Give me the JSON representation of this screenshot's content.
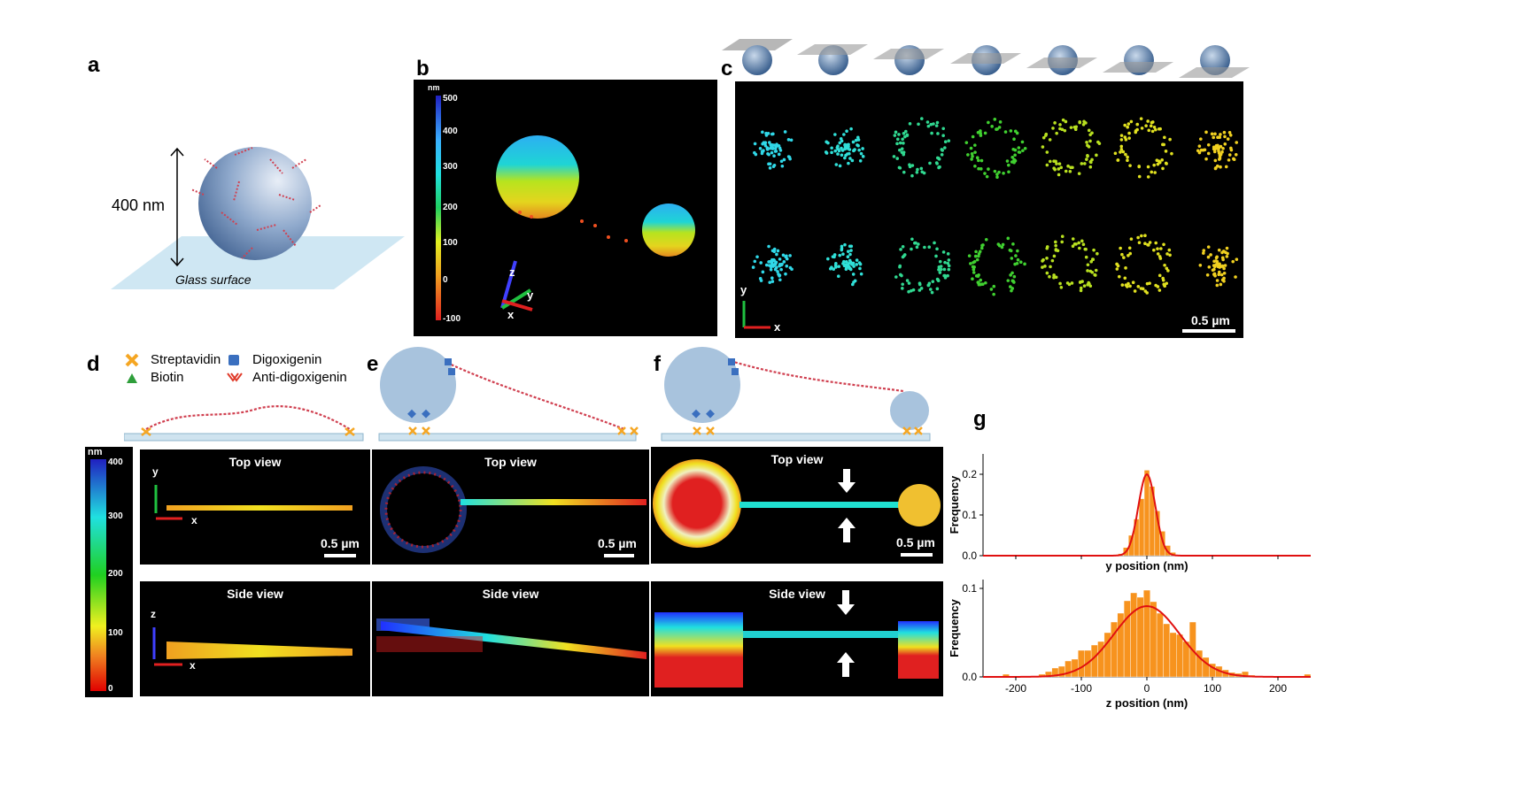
{
  "panels": {
    "a": {
      "label": "a",
      "size_label": "400 nm",
      "surface_label": "Glass surface"
    },
    "b": {
      "label": "b",
      "colorbar_unit": "nm",
      "colorbar_ticks": [
        "500",
        "400",
        "300",
        "200",
        "100",
        "0",
        "-100"
      ],
      "axes": [
        "z",
        "y",
        "x"
      ]
    },
    "c": {
      "label": "c",
      "axes": [
        "y",
        "x"
      ],
      "scale_label": "0.5 µm"
    },
    "d": {
      "label": "d",
      "top_title": "Top view",
      "side_title": "Side view",
      "scale_label": "0.5 µm",
      "axes_top": [
        "y",
        "x"
      ],
      "axes_side": [
        "z",
        "x"
      ]
    },
    "e": {
      "label": "e",
      "top_title": "Top view",
      "side_title": "Side view",
      "scale_label": "0.5 µm"
    },
    "f": {
      "label": "f",
      "top_title": "Top view",
      "side_title": "Side view",
      "scale_label": "0.5 µm"
    },
    "g": {
      "label": "g"
    }
  },
  "legend": {
    "streptavidin": "Streptavidin",
    "biotin": "Biotin",
    "digoxigenin": "Digoxigenin",
    "anti_digoxigenin": "Anti-digoxigenin"
  },
  "colorbar2": {
    "unit": "nm",
    "ticks": [
      "400",
      "300",
      "200",
      "100",
      "0"
    ]
  },
  "colors": {
    "streptavidin": "#f5a623",
    "biotin": "#2e9e3a",
    "digoxigenin": "#3a6fbf",
    "anti_dig": "#e03b2a",
    "hist": "#f7931e",
    "fit": "#e01010"
  },
  "chart_data": [
    {
      "type": "bar",
      "title": "",
      "xlabel": "y position (nm)",
      "ylabel": "Frequency",
      "xlim": [
        -250,
        250
      ],
      "ylim": [
        0,
        0.25
      ],
      "yticks": [
        0.0,
        0.1,
        0.2
      ],
      "ytick_labels": [
        "0.0",
        "0.1",
        "0.2"
      ],
      "x": [
        -40,
        -32,
        -24,
        -16,
        -8,
        0,
        8,
        16,
        24,
        32,
        40
      ],
      "values": [
        0.005,
        0.02,
        0.05,
        0.09,
        0.14,
        0.21,
        0.17,
        0.11,
        0.06,
        0.025,
        0.008
      ],
      "fit": {
        "type": "gaussian",
        "mean": 0,
        "sigma": 13,
        "amplitude": 0.2
      }
    },
    {
      "type": "bar",
      "title": "",
      "xlabel": "z position (nm)",
      "ylabel": "Frequency",
      "xlim": [
        -250,
        250
      ],
      "ylim": [
        0,
        0.11
      ],
      "xticks": [
        -200,
        -100,
        0,
        100,
        200
      ],
      "xtick_labels": [
        "-200",
        "-100",
        "0",
        "100",
        "200"
      ],
      "yticks": [
        0.0,
        0.1
      ],
      "ytick_labels": [
        "0.0",
        "0.1"
      ],
      "x": [
        -215,
        -160,
        -150,
        -140,
        -130,
        -120,
        -110,
        -100,
        -90,
        -80,
        -70,
        -60,
        -50,
        -40,
        -30,
        -20,
        -10,
        0,
        10,
        20,
        30,
        40,
        50,
        60,
        70,
        80,
        90,
        100,
        110,
        120,
        130,
        140,
        150,
        160,
        245
      ],
      "values": [
        0.003,
        0.003,
        0.006,
        0.01,
        0.012,
        0.018,
        0.02,
        0.03,
        0.03,
        0.036,
        0.04,
        0.05,
        0.062,
        0.072,
        0.086,
        0.095,
        0.09,
        0.098,
        0.085,
        0.072,
        0.06,
        0.05,
        0.048,
        0.04,
        0.062,
        0.03,
        0.022,
        0.015,
        0.012,
        0.008,
        0.005,
        0.004,
        0.006,
        0.002,
        0.003
      ],
      "fit": {
        "type": "gaussian",
        "mean": 0,
        "sigma": 50,
        "amplitude": 0.08
      }
    }
  ]
}
